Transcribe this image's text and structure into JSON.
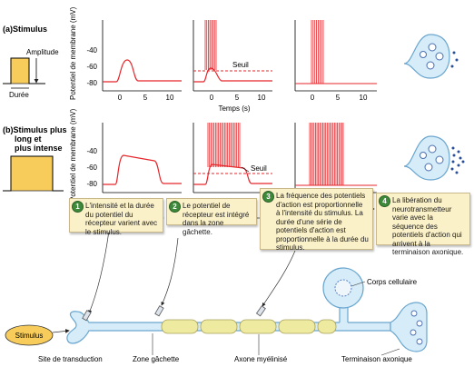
{
  "panel_a": {
    "label": "(a)",
    "title": "Stimulus",
    "amplitude_label": "Amplitude",
    "duration_label": "Durée",
    "y_axis_label": "Potentiel de membrane (mV)",
    "x_axis_label": "Temps (s)",
    "threshold_label": "Seuil"
  },
  "panel_b": {
    "label": "(b)",
    "title_line1": "Stimulus plus",
    "title_line2": "long et",
    "title_line3": "plus intense",
    "y_axis_label": "Potentiel de membrane (mV)",
    "threshold_label": "Seuil"
  },
  "y_ticks": [
    "-40",
    "-60",
    "-80"
  ],
  "x_ticks": [
    "0",
    "5",
    "10"
  ],
  "steps": [
    {
      "num": "1",
      "text": "L'intensité et la durée du potentiel du récepteur varient avec le stimulus."
    },
    {
      "num": "2",
      "text": "Le potentiel de récepteur est intégré dans la zone gâchette."
    },
    {
      "num": "3",
      "text": "La fréquence des potentiels d'action est proportionnelle à l'intensité du stimulus. La durée d'une série de potentiels d'action est proportionnelle à la durée du stimulus."
    },
    {
      "num": "4",
      "text": "La libération du neurotransmetteur varie avec la séquence des potentiels d'action qui arrivent à la terminaison axonique."
    }
  ],
  "neuron": {
    "stimulus_label": "Stimulus",
    "cell_body_label": "Corps cellulaire",
    "transduction_label": "Site de transduction",
    "trigger_zone_label": "Zone gâchette",
    "myelinated_axon_label": "Axone myélinisé",
    "axon_terminal_label": "Terminaison axonique"
  },
  "colors": {
    "trace": "#e5262b",
    "stimulus_box": "#f7cc5a",
    "neuron_fill": "#d6ecf8",
    "neuron_stroke": "#6aa6cf",
    "myelin": "#eeeaa0",
    "note_fill": "#fbf1c9",
    "step_badge": "#3f8a3a"
  }
}
